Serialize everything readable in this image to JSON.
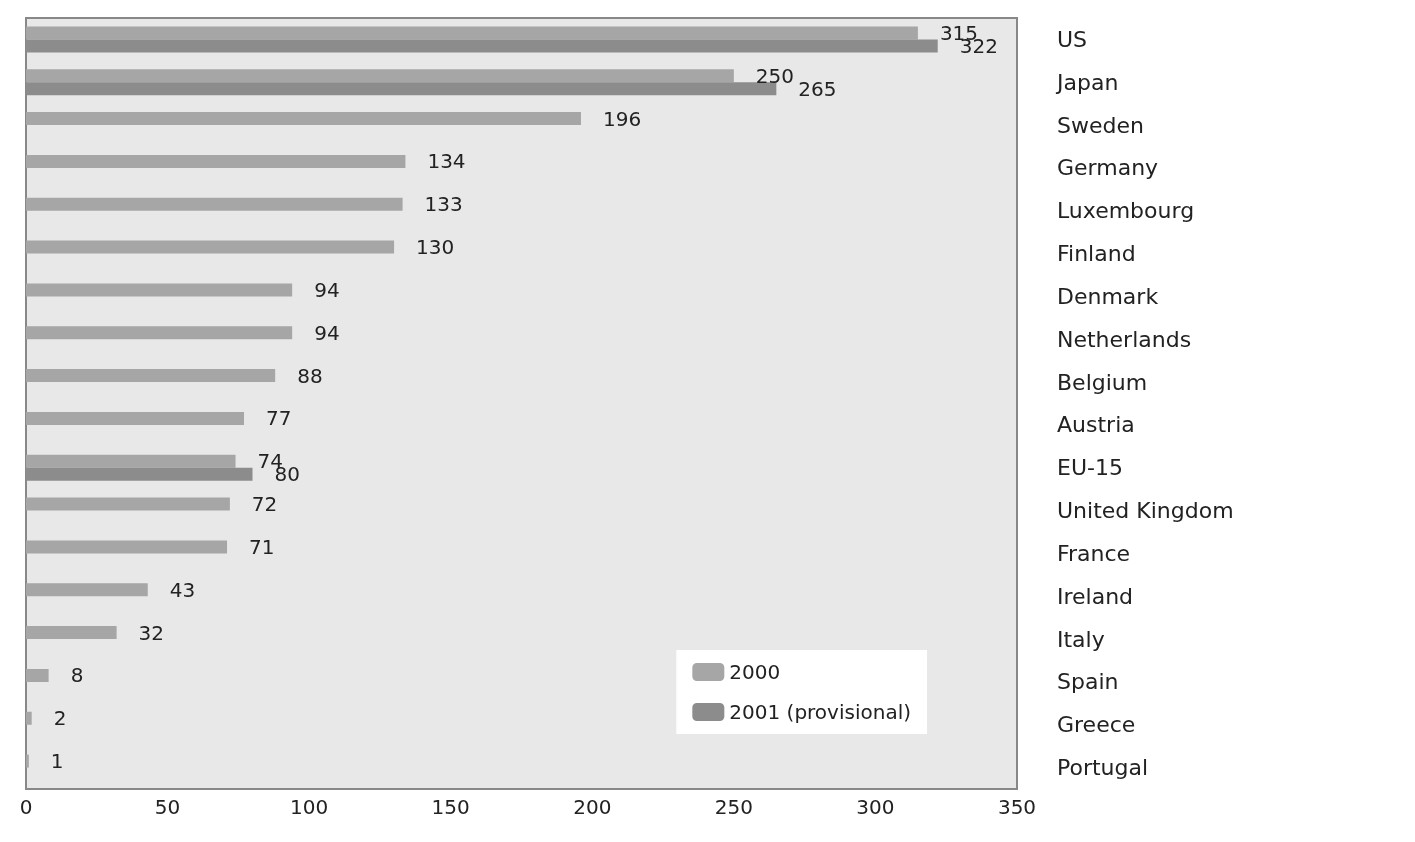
{
  "chart_data": {
    "type": "bar",
    "orientation": "horizontal",
    "categories": [
      "US",
      "Japan",
      "Sweden",
      "Germany",
      "Luxembourg",
      "Finland",
      "Denmark",
      "Netherlands",
      "Belgium",
      "Austria",
      "EU-15",
      "United Kingdom",
      "France",
      "Ireland",
      "Italy",
      "Spain",
      "Greece",
      "Portugal"
    ],
    "series": [
      {
        "name": "2000",
        "color": "#a6a6a6",
        "values": [
          315,
          250,
          196,
          134,
          133,
          130,
          94,
          94,
          88,
          77,
          74,
          72,
          71,
          43,
          32,
          8,
          2,
          1
        ]
      },
      {
        "name": "2001 (provisional)",
        "color": "#8c8c8c",
        "values": [
          322,
          265,
          null,
          null,
          null,
          null,
          null,
          null,
          null,
          null,
          80,
          null,
          null,
          null,
          null,
          null,
          null,
          null
        ]
      }
    ],
    "xlim": [
      0,
      350
    ],
    "xticks": [
      0,
      50,
      100,
      150,
      200,
      250,
      300,
      350
    ],
    "data_labels": true,
    "legend": "bottom right",
    "grid": false
  }
}
